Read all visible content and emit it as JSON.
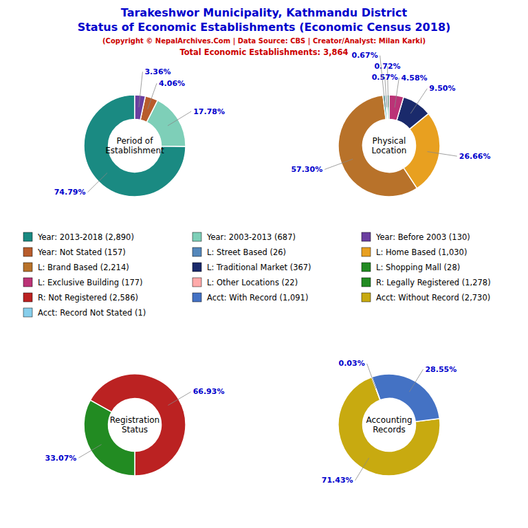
{
  "title": {
    "text": [
      "Tarakeshwor Municipality, Kathmandu District",
      "Status of Economic Establishments (Economic Census 2018)"
    ],
    "color": "#0000CC"
  },
  "subtitle": {
    "text": [
      "(Copyright © NepalArchives.Com | Data Source: CBS | Creator/Analyst: Milan Karki)",
      "Total Economic Establishments: 3,864"
    ],
    "color": "#CC0000"
  },
  "chart_data": [
    {
      "type": "pie",
      "title": "Period of\nEstablishment",
      "values": [
        74.79,
        17.78,
        4.06,
        3.36
      ],
      "value_labels": [
        "74.79%",
        "17.78%",
        "4.06%",
        "3.36%"
      ],
      "colors": [
        "#1a8a82",
        "#7ecfb8",
        "#b85c2c",
        "#6b3fa0"
      ],
      "data_labels": true
    },
    {
      "type": "pie",
      "title": "Physical\nLocation",
      "values": [
        57.3,
        26.66,
        9.5,
        4.58,
        0.72,
        0.57,
        0.67
      ],
      "value_labels": [
        "57.30%",
        "26.66%",
        "9.50%",
        "4.58%",
        "0.72%",
        "0.57%",
        "0.67%"
      ],
      "colors": [
        "#b8722a",
        "#e8a020",
        "#1a2a6b",
        "#bb3377",
        "#228866",
        "#5588bb",
        "#008080"
      ],
      "data_labels": true
    },
    {
      "type": "pie",
      "title": "Registration\nStatus",
      "values": [
        66.93,
        33.07
      ],
      "value_labels": [
        "66.93%",
        "33.07%"
      ],
      "colors": [
        "#bb2222",
        "#228B22"
      ],
      "data_labels": true
    },
    {
      "type": "pie",
      "title": "Accounting\nRecords",
      "values": [
        71.43,
        28.55,
        0.03
      ],
      "value_labels": [
        "71.43%",
        "28.55%",
        "0.03%"
      ],
      "colors": [
        "#c8aa10",
        "#4472C4",
        "#b8722a"
      ],
      "data_labels": true
    }
  ],
  "legend_entries": [
    [
      {
        "name": "Year: 2013-2018 (2,890)",
        "color": "#1a8a82"
      },
      {
        "name": "Year: Not Stated (157)",
        "color": "#b85c2c"
      },
      {
        "name": "L: Brand Based (2,214)",
        "color": "#b8722a"
      },
      {
        "name": "L: Exclusive Building (177)",
        "color": "#bb3377"
      },
      {
        "name": "R: Not Registered (2,586)",
        "color": "#bb2222"
      },
      {
        "name": "Acct: Record Not Stated (1)",
        "color": "#87CEEB"
      }
    ],
    [
      {
        "name": "Year: 2003-2013 (687)",
        "color": "#7ecfb8"
      },
      {
        "name": "L: Street Based (26)",
        "color": "#5588bb"
      },
      {
        "name": "L: Traditional Market (367)",
        "color": "#1a2a6b"
      },
      {
        "name": "L: Other Locations (22)",
        "color": "#ffaaaa"
      },
      {
        "name": "Acct: With Record (1,091)",
        "color": "#4472C4"
      }
    ],
    [
      {
        "name": "Year: Before 2003 (130)",
        "color": "#6b3fa0"
      },
      {
        "name": "L: Home Based (1,030)",
        "color": "#e8a020"
      },
      {
        "name": "L: Shopping Mall (28)",
        "color": "#228B22"
      },
      {
        "name": "R: Legally Registered (1,278)",
        "color": "#228B22"
      },
      {
        "name": "Acct: Without Record (2,730)",
        "color": "#c8aa10"
      }
    ]
  ]
}
